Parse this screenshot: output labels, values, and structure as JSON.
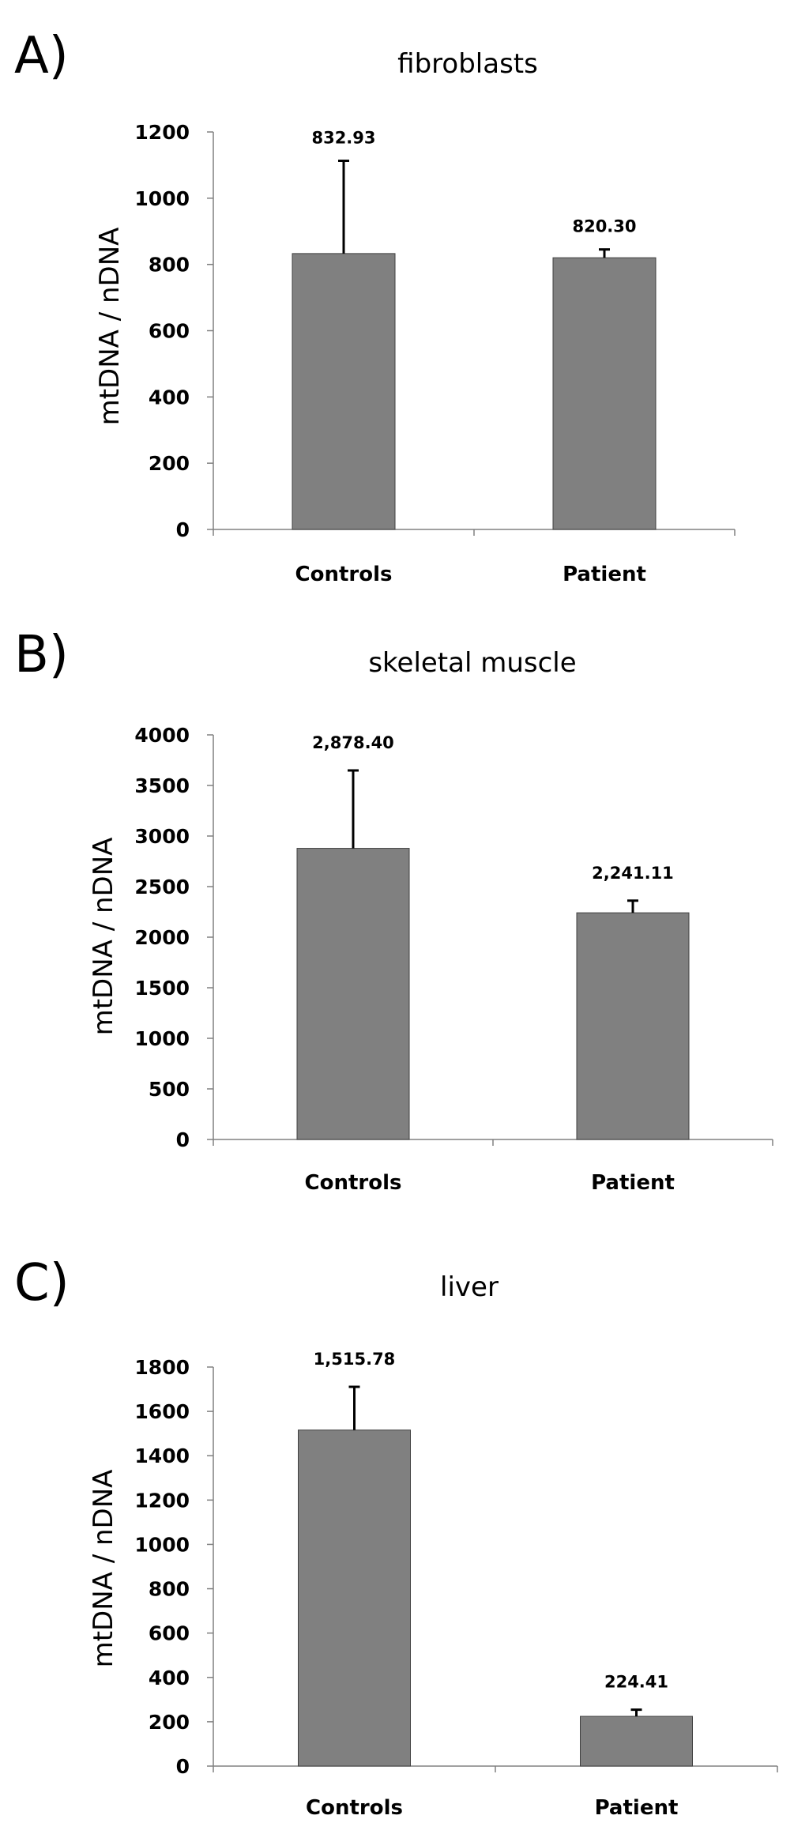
{
  "chart_data": [
    {
      "type": "bar",
      "panel": "A)",
      "title": "fibroblasts",
      "xlabel": "",
      "ylabel": "mtDNA / nDNA",
      "categories": [
        "Controls",
        "Patient"
      ],
      "values": [
        832.93,
        820.3
      ],
      "data_labels": [
        "832.93",
        "820.30"
      ],
      "error_bars_upper": [
        280,
        25
      ],
      "ylim": [
        0,
        1200
      ],
      "yticks": [
        0,
        200,
        400,
        600,
        800,
        1000,
        1200
      ],
      "bar_color": "#808080",
      "grid": false,
      "legend": "none"
    },
    {
      "type": "bar",
      "panel": "B)",
      "title": "skeletal muscle",
      "xlabel": "",
      "ylabel": "mtDNA / nDNA",
      "categories": [
        "Controls",
        "Patient"
      ],
      "values": [
        2878.4,
        2241.11
      ],
      "data_labels": [
        "2,878.40",
        "2,241.11"
      ],
      "error_bars_upper": [
        770,
        120
      ],
      "ylim": [
        0,
        4000
      ],
      "yticks": [
        0,
        500,
        1000,
        1500,
        2000,
        2500,
        3000,
        3500,
        4000
      ],
      "bar_color": "#808080",
      "grid": false,
      "legend": "none"
    },
    {
      "type": "bar",
      "panel": "C)",
      "title": "liver",
      "xlabel": "",
      "ylabel": "mtDNA / nDNA",
      "categories": [
        "Controls",
        "Patient"
      ],
      "values": [
        1515.78,
        224.41
      ],
      "data_labels": [
        "1,515.78",
        "224.41"
      ],
      "error_bars_upper": [
        195,
        30
      ],
      "ylim": [
        0,
        1800
      ],
      "yticks": [
        0,
        200,
        400,
        600,
        800,
        1000,
        1200,
        1400,
        1600,
        1800
      ],
      "bar_color": "#808080",
      "grid": false,
      "legend": "none"
    }
  ]
}
